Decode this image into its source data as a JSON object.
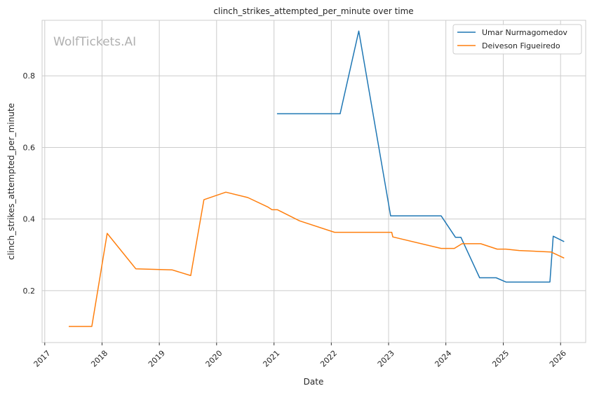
{
  "chart_data": {
    "type": "line",
    "title": "clinch_strikes_attempted_per_minute over time",
    "xlabel": "Date",
    "ylabel": "clinch_strikes_attempted_per_minute",
    "watermark": "WolfTickets.AI",
    "grid": true,
    "legend_position": "top-right",
    "x_ticks": [
      "2017",
      "2018",
      "2019",
      "2020",
      "2021",
      "2022",
      "2023",
      "2024",
      "2025",
      "2026"
    ],
    "y_ticks": [
      0.2,
      0.4,
      0.6,
      0.8
    ],
    "xlim": [
      "2016-12-15",
      "2026-06-10"
    ],
    "ylim": [
      0.055,
      0.955
    ],
    "series": [
      {
        "name": "Umar Nurmagomedov",
        "color": "#1f77b4",
        "points": [
          [
            "2021-01-20",
            0.694
          ],
          [
            "2022-02-26",
            0.694
          ],
          [
            "2022-06-25",
            0.925
          ],
          [
            "2023-01-14",
            0.409
          ],
          [
            "2023-12-02",
            0.409
          ],
          [
            "2024-03-02",
            0.349
          ],
          [
            "2024-04-06",
            0.349
          ],
          [
            "2024-08-03",
            0.236
          ],
          [
            "2024-11-16",
            0.236
          ],
          [
            "2025-01-18",
            0.224
          ],
          [
            "2025-10-25",
            0.224
          ],
          [
            "2025-11-15",
            0.352
          ],
          [
            "2026-01-24",
            0.337
          ]
        ]
      },
      {
        "name": "Deiveson Figueiredo",
        "color": "#ff7f0e",
        "points": [
          [
            "2017-06-03",
            0.1
          ],
          [
            "2017-10-28",
            0.1
          ],
          [
            "2018-02-03",
            0.36
          ],
          [
            "2018-08-04",
            0.261
          ],
          [
            "2019-03-23",
            0.258
          ],
          [
            "2019-07-20",
            0.242
          ],
          [
            "2019-10-12",
            0.454
          ],
          [
            "2020-02-29",
            0.475
          ],
          [
            "2020-07-18",
            0.46
          ],
          [
            "2020-11-21",
            0.434
          ],
          [
            "2020-12-19",
            0.426
          ],
          [
            "2021-01-23",
            0.426
          ],
          [
            "2021-06-12",
            0.395
          ],
          [
            "2022-01-22",
            0.363
          ],
          [
            "2023-01-21",
            0.363
          ],
          [
            "2023-01-28",
            0.35
          ],
          [
            "2023-12-02",
            0.318
          ],
          [
            "2024-02-24",
            0.318
          ],
          [
            "2024-04-13",
            0.331
          ],
          [
            "2024-08-10",
            0.331
          ],
          [
            "2024-11-23",
            0.316
          ],
          [
            "2025-01-18",
            0.316
          ],
          [
            "2025-04-12",
            0.312
          ],
          [
            "2025-11-01",
            0.308
          ],
          [
            "2026-01-24",
            0.291
          ]
        ]
      }
    ]
  }
}
